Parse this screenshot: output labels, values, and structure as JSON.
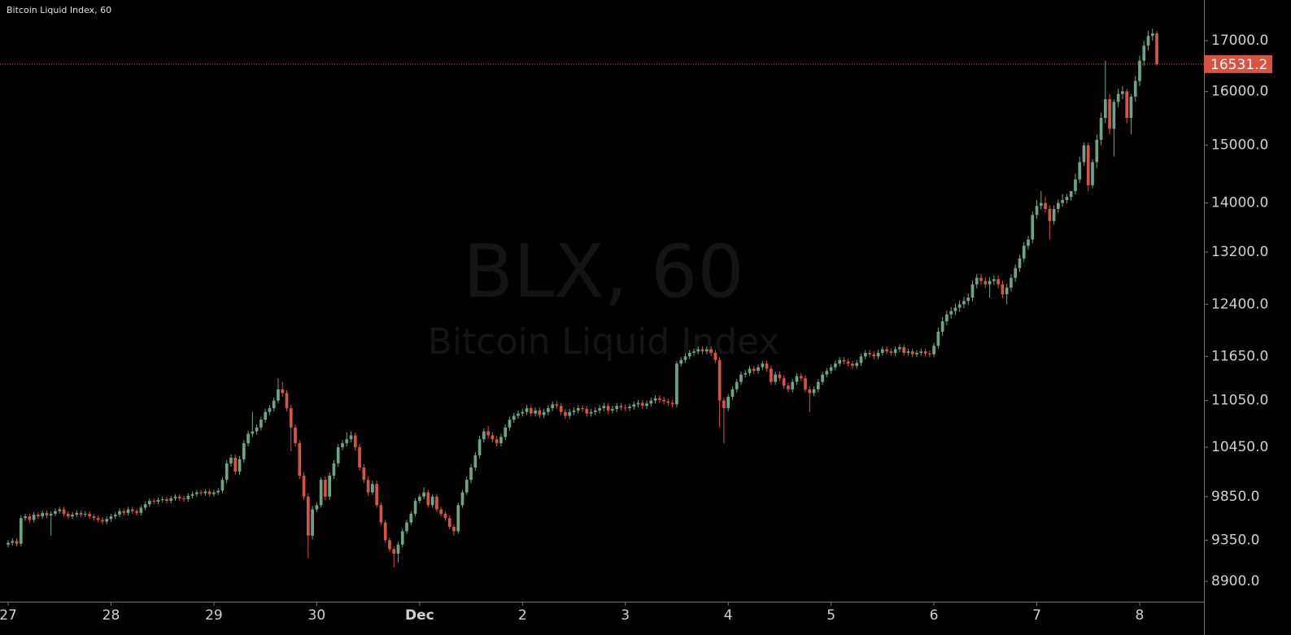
{
  "chart_data": {
    "type": "candlestick",
    "title": "Bitcoin Liquid Index, 60",
    "watermark_symbol": "BLX, 60",
    "watermark_name": "Bitcoin Liquid Index",
    "log_scale": true,
    "up_color": "#6ba583",
    "down_color": "#d75442",
    "last_price_line": true,
    "ylim": [
      8686,
      17850
    ],
    "yticks": [
      {
        "value": 8900,
        "label": "8900.0"
      },
      {
        "value": 9350,
        "label": "9350.0"
      },
      {
        "value": 9850,
        "label": "9850.0"
      },
      {
        "value": 10450,
        "label": "10450.0"
      },
      {
        "value": 11050,
        "label": "11050.0"
      },
      {
        "value": 11650,
        "label": "11650.0"
      },
      {
        "value": 12400,
        "label": "12400.0"
      },
      {
        "value": 13200,
        "label": "13200.0"
      },
      {
        "value": 14000,
        "label": "14000.0"
      },
      {
        "value": 15000,
        "label": "15000.0"
      },
      {
        "value": 16000,
        "label": "16000.0"
      },
      {
        "value": 17000,
        "label": "17000.0"
      }
    ],
    "xlim": [
      -1.9,
      279
    ],
    "xticks": [
      {
        "value": 0,
        "label": "27"
      },
      {
        "value": 24,
        "label": "28"
      },
      {
        "value": 48,
        "label": "29"
      },
      {
        "value": 72,
        "label": "30"
      },
      {
        "value": 96,
        "label": "Dec"
      },
      {
        "value": 120,
        "label": "2"
      },
      {
        "value": 144,
        "label": "3"
      },
      {
        "value": 168,
        "label": "4"
      },
      {
        "value": 192,
        "label": "5"
      },
      {
        "value": 216,
        "label": "6"
      },
      {
        "value": 240,
        "label": "7"
      },
      {
        "value": 264,
        "label": "8"
      }
    ],
    "open": [
      9300,
      9320,
      9340,
      9310,
      9600,
      9620,
      9580,
      9640,
      9620,
      9660,
      9630,
      9650,
      9680,
      9700,
      9650,
      9620,
      9640,
      9660,
      9640,
      9650,
      9620,
      9600,
      9580,
      9560,
      9590,
      9620,
      9640,
      9680,
      9660,
      9700,
      9680,
      9660,
      9720,
      9760,
      9800,
      9790,
      9810,
      9820,
      9800,
      9830,
      9850,
      9830,
      9820,
      9860,
      9880,
      9900,
      9890,
      9910,
      9880,
      9900,
      9920,
      10050,
      10250,
      10320,
      10150,
      10300,
      10500,
      10620,
      10650,
      10700,
      10800,
      10900,
      10950,
      11050,
      11200,
      11150,
      10950,
      10700,
      10500,
      10100,
      9850,
      9400,
      9700,
      9750,
      10050,
      9850,
      10100,
      10250,
      10450,
      10500,
      10550,
      10600,
      10450,
      10200,
      10050,
      9900,
      10000,
      9750,
      9550,
      9350,
      9250,
      9200,
      9300,
      9450,
      9550,
      9650,
      9800,
      9850,
      9900,
      9750,
      9850,
      9700,
      9650,
      9600,
      9500,
      9450,
      9750,
      9900,
      10050,
      10200,
      10350,
      10550,
      10650,
      10600,
      10550,
      10500,
      10580,
      10700,
      10800,
      10850,
      10880,
      10900,
      10950,
      10880,
      10920,
      10860,
      10900,
      10950,
      11000,
      10980,
      10900,
      10850,
      10900,
      10920,
      10950,
      10940,
      10880,
      10900,
      10920,
      10950,
      10980,
      10920,
      10940,
      10980,
      10960,
      10950,
      10970,
      11000,
      11020,
      10980,
      11010,
      11050,
      11080,
      11060,
      11040,
      11020,
      11000,
      11550,
      11600,
      11650,
      11700,
      11720,
      11750,
      11720,
      11750,
      11700,
      11600,
      11050,
      10950,
      11100,
      11200,
      11300,
      11400,
      11420,
      11480,
      11450,
      11500,
      11550,
      11480,
      11300,
      11400,
      11350,
      11250,
      11200,
      11300,
      11380,
      11350,
      11200,
      11150,
      11200,
      11300,
      11400,
      11450,
      11500,
      11550,
      11600,
      11580,
      11550,
      11520,
      11560,
      11650,
      11700,
      11680,
      11650,
      11700,
      11750,
      11720,
      11700,
      11750,
      11780,
      11700,
      11720,
      11680,
      11700,
      11720,
      11690,
      11680,
      11800,
      12000,
      12150,
      12250,
      12300,
      12350,
      12400,
      12450,
      12500,
      12700,
      12800,
      12750,
      12700,
      12750,
      12780,
      12700,
      12550,
      12650,
      12800,
      12950,
      13100,
      13300,
      13400,
      13800,
      13950,
      14000,
      13900,
      13700,
      13900,
      14000,
      14050,
      14100,
      14200,
      14400,
      14700,
      15000,
      14300,
      14700,
      15100,
      15500,
      15850,
      15300,
      15800,
      15950,
      16000,
      15500,
      15900,
      16200,
      16600,
      16900,
      17100,
      17150
    ],
    "high": [
      9350,
      9370,
      9370,
      9630,
      9650,
      9650,
      9670,
      9670,
      9690,
      9690,
      9680,
      9710,
      9730,
      9730,
      9680,
      9670,
      9690,
      9690,
      9680,
      9680,
      9650,
      9630,
      9610,
      9620,
      9650,
      9670,
      9710,
      9710,
      9730,
      9730,
      9710,
      9750,
      9790,
      9830,
      9830,
      9840,
      9850,
      9850,
      9860,
      9880,
      9880,
      9860,
      9890,
      9910,
      9930,
      9930,
      9940,
      9940,
      9930,
      9950,
      10080,
      10290,
      10360,
      10360,
      10340,
      10540,
      10660,
      10900,
      10740,
      10840,
      10940,
      10990,
      11090,
      11350,
      11300,
      11190,
      10990,
      10740,
      10540,
      10140,
      9890,
      9740,
      9780,
      10080,
      10090,
      10140,
      10290,
      10490,
      10540,
      10640,
      10650,
      10640,
      10490,
      10240,
      10090,
      10040,
      10040,
      9780,
      9580,
      9380,
      9280,
      9330,
      9480,
      9580,
      9680,
      9830,
      9880,
      9960,
      9930,
      9880,
      9880,
      9730,
      9680,
      9630,
      9530,
      9780,
      9930,
      10090,
      10240,
      10390,
      10590,
      10690,
      10720,
      10640,
      10590,
      10620,
      10740,
      10840,
      10890,
      10920,
      10940,
      10990,
      10990,
      10960,
      10960,
      10940,
      10990,
      11040,
      11040,
      11020,
      10940,
      10940,
      10960,
      10990,
      10990,
      10980,
      10940,
      10960,
      10990,
      11020,
      11020,
      10980,
      11020,
      11020,
      11000,
      11010,
      11040,
      11060,
      11060,
      11050,
      11090,
      11120,
      11120,
      11100,
      11080,
      11060,
      11590,
      11640,
      11690,
      11740,
      11760,
      11790,
      11790,
      11790,
      11790,
      11740,
      11640,
      11090,
      11140,
      11240,
      11340,
      11440,
      11460,
      11520,
      11520,
      11540,
      11590,
      11590,
      11520,
      11440,
      11440,
      11390,
      11290,
      11340,
      11420,
      11420,
      11390,
      11240,
      11240,
      11340,
      11440,
      11490,
      11540,
      11590,
      11640,
      11640,
      11620,
      11590,
      11600,
      11690,
      11740,
      11740,
      11720,
      11740,
      11790,
      11790,
      11760,
      11790,
      11820,
      11820,
      11760,
      11760,
      11740,
      11760,
      11760,
      11730,
      11840,
      12060,
      12210,
      12310,
      12360,
      12410,
      12460,
      12510,
      12560,
      12760,
      12860,
      12860,
      12810,
      12810,
      12840,
      12840,
      12760,
      12710,
      12860,
      13010,
      13160,
      13360,
      13460,
      13860,
      14050,
      14200,
      14100,
      13960,
      13960,
      14060,
      14150,
      14150,
      14200,
      14500,
      14800,
      15050,
      15050,
      14750,
      15200,
      15600,
      16600,
      15950,
      15850,
      16050,
      16100,
      16050,
      15950,
      16300,
      16700,
      17000,
      17200,
      17250,
      17200
    ],
    "low": [
      9270,
      9290,
      9280,
      9280,
      9570,
      9550,
      9550,
      9590,
      9590,
      9600,
      9400,
      9620,
      9650,
      9620,
      9590,
      9590,
      9610,
      9610,
      9610,
      9590,
      9570,
      9550,
      9530,
      9530,
      9560,
      9590,
      9610,
      9630,
      9630,
      9650,
      9630,
      9630,
      9690,
      9730,
      9760,
      9760,
      9780,
      9770,
      9770,
      9800,
      9800,
      9790,
      9790,
      9830,
      9850,
      9860,
      9860,
      9850,
      9850,
      9870,
      9890,
      10010,
      10210,
      10110,
      10110,
      10260,
      10460,
      10580,
      10610,
      10660,
      10760,
      10860,
      10910,
      11010,
      11100,
      10910,
      10400,
      10460,
      10060,
      9810,
      9150,
      9360,
      9670,
      9720,
      9810,
      9810,
      10060,
      10210,
      10410,
      10460,
      10510,
      10410,
      10160,
      10010,
      9860,
      9870,
      9720,
      9520,
      9320,
      9220,
      9050,
      9100,
      9270,
      9420,
      9520,
      9620,
      9770,
      9820,
      9720,
      9720,
      9670,
      9620,
      9570,
      9470,
      9400,
      9420,
      9720,
      9870,
      10010,
      10160,
      10310,
      10510,
      10560,
      10510,
      10460,
      10460,
      10540,
      10660,
      10760,
      10810,
      10840,
      10860,
      10840,
      10840,
      10820,
      10820,
      10860,
      10910,
      10940,
      10860,
      10810,
      10810,
      10860,
      10880,
      10900,
      10840,
      10840,
      10860,
      10880,
      10910,
      10880,
      10880,
      10900,
      10920,
      10910,
      10910,
      10930,
      10960,
      10940,
      10940,
      10970,
      11010,
      11020,
      11000,
      10980,
      10960,
      10960,
      11510,
      11560,
      11610,
      11660,
      11680,
      11680,
      11680,
      11660,
      11560,
      10700,
      10500,
      10910,
      11060,
      11160,
      11260,
      11360,
      11380,
      11410,
      11410,
      11460,
      11440,
      11260,
      11260,
      11310,
      11210,
      11160,
      11160,
      11260,
      11310,
      11160,
      10900,
      11110,
      11160,
      11260,
      11360,
      11410,
      11460,
      11510,
      11540,
      11510,
      11480,
      11480,
      11520,
      11610,
      11640,
      11610,
      11610,
      11660,
      11680,
      11660,
      11660,
      11710,
      11660,
      11660,
      11640,
      11640,
      11660,
      11650,
      11640,
      11640,
      11760,
      11940,
      12090,
      12190,
      12240,
      12290,
      12340,
      12390,
      12440,
      12640,
      12690,
      12640,
      12500,
      12690,
      12640,
      12490,
      12400,
      12590,
      12740,
      12890,
      13040,
      13240,
      13340,
      13740,
      13890,
      13840,
      13400,
      13640,
      13840,
      13940,
      13990,
      14040,
      14140,
      14340,
      14640,
      14200,
      14250,
      14600,
      15000,
      15400,
      15200,
      14800,
      15700,
      15850,
      15400,
      15200,
      15800,
      16100,
      16500,
      16800,
      17000,
      16500
    ],
    "close": [
      9320,
      9340,
      9310,
      9600,
      9620,
      9580,
      9640,
      9620,
      9660,
      9630,
      9650,
      9680,
      9700,
      9650,
      9620,
      9640,
      9660,
      9640,
      9650,
      9620,
      9600,
      9580,
      9560,
      9590,
      9620,
      9640,
      9680,
      9660,
      9700,
      9680,
      9660,
      9720,
      9760,
      9800,
      9790,
      9810,
      9820,
      9800,
      9830,
      9850,
      9830,
      9820,
      9860,
      9880,
      9900,
      9890,
      9910,
      9880,
      9900,
      9920,
      10050,
      10250,
      10320,
      10150,
      10300,
      10500,
      10620,
      10650,
      10700,
      10800,
      10900,
      10950,
      11050,
      11200,
      11150,
      10950,
      10700,
      10500,
      10100,
      9850,
      9400,
      9700,
      9750,
      10050,
      9850,
      10100,
      10250,
      10450,
      10500,
      10550,
      10600,
      10450,
      10200,
      10050,
      9900,
      10000,
      9750,
      9550,
      9350,
      9250,
      9200,
      9300,
      9450,
      9550,
      9650,
      9800,
      9850,
      9900,
      9750,
      9850,
      9700,
      9650,
      9600,
      9500,
      9450,
      9750,
      9900,
      10050,
      10200,
      10350,
      10550,
      10650,
      10600,
      10550,
      10500,
      10580,
      10700,
      10800,
      10850,
      10880,
      10900,
      10950,
      10880,
      10920,
      10860,
      10900,
      10950,
      11000,
      10980,
      10900,
      10850,
      10900,
      10920,
      10950,
      10940,
      10880,
      10900,
      10920,
      10950,
      10980,
      10920,
      10940,
      10980,
      10960,
      10950,
      10970,
      11000,
      11020,
      10980,
      11010,
      11050,
      11080,
      11060,
      11040,
      11020,
      11000,
      11550,
      11600,
      11650,
      11700,
      11720,
      11750,
      11720,
      11750,
      11700,
      11600,
      11050,
      10950,
      11100,
      11200,
      11300,
      11400,
      11420,
      11480,
      11450,
      11500,
      11550,
      11480,
      11300,
      11400,
      11350,
      11250,
      11200,
      11300,
      11380,
      11350,
      11200,
      11150,
      11200,
      11300,
      11400,
      11450,
      11500,
      11550,
      11600,
      11580,
      11550,
      11520,
      11560,
      11650,
      11700,
      11680,
      11650,
      11700,
      11750,
      11720,
      11700,
      11750,
      11780,
      11700,
      11720,
      11680,
      11700,
      11720,
      11690,
      11680,
      11800,
      12000,
      12150,
      12250,
      12300,
      12350,
      12400,
      12450,
      12500,
      12700,
      12800,
      12750,
      12700,
      12750,
      12780,
      12700,
      12550,
      12650,
      12800,
      12950,
      13100,
      13300,
      13400,
      13800,
      13950,
      14000,
      13900,
      13700,
      13900,
      14000,
      14050,
      14100,
      14200,
      14400,
      14700,
      15000,
      14300,
      14700,
      15100,
      15500,
      15850,
      15300,
      15800,
      15950,
      16000,
      15500,
      15900,
      16200,
      16600,
      16900,
      17100,
      17150,
      16531.2
    ]
  }
}
